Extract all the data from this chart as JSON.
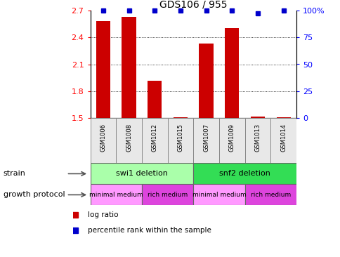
{
  "title": "GDS106 / 955",
  "samples": [
    "GSM1006",
    "GSM1008",
    "GSM1012",
    "GSM1015",
    "GSM1007",
    "GSM1009",
    "GSM1013",
    "GSM1014"
  ],
  "log_ratio": [
    2.58,
    2.63,
    1.92,
    1.51,
    2.33,
    2.5,
    1.52,
    1.51
  ],
  "percentile_rank": [
    100,
    100,
    100,
    100,
    100,
    100,
    97,
    100
  ],
  "ylim": [
    1.5,
    2.7
  ],
  "yticks": [
    1.5,
    1.8,
    2.1,
    2.4,
    2.7
  ],
  "right_yticks": [
    0,
    25,
    50,
    75,
    100
  ],
  "right_ylim": [
    0,
    100
  ],
  "bar_color": "#cc0000",
  "dot_color": "#0000cc",
  "strain_groups": [
    {
      "label": "swi1 deletion",
      "start": 0,
      "end": 4,
      "color": "#aaffaa"
    },
    {
      "label": "snf2 deletion",
      "start": 4,
      "end": 8,
      "color": "#33dd55"
    }
  ],
  "protocol_groups": [
    {
      "label": "minimal medium",
      "start": 0,
      "end": 2,
      "color": "#ff99ff"
    },
    {
      "label": "rich medium",
      "start": 2,
      "end": 4,
      "color": "#dd44dd"
    },
    {
      "label": "minimal medium",
      "start": 4,
      "end": 6,
      "color": "#ff99ff"
    },
    {
      "label": "rich medium",
      "start": 6,
      "end": 8,
      "color": "#dd44dd"
    }
  ],
  "strain_label": "strain",
  "protocol_label": "growth protocol",
  "legend_items": [
    {
      "label": "log ratio",
      "color": "#cc0000"
    },
    {
      "label": "percentile rank within the sample",
      "color": "#0000cc"
    }
  ],
  "gridline_yticks": [
    1.8,
    2.1,
    2.4
  ],
  "bar_width": 0.55
}
